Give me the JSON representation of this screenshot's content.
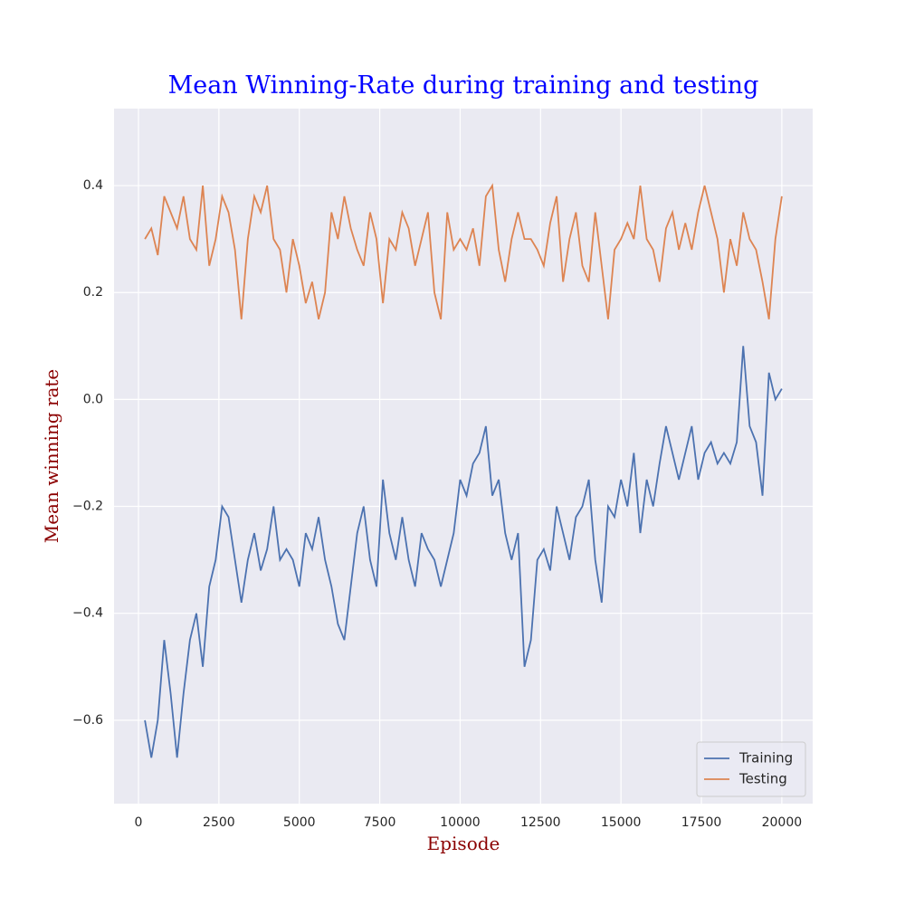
{
  "chart_data": {
    "type": "line",
    "title": "Mean Winning-Rate during training and testing",
    "x_label": "Episode",
    "y_label": "Mean winning rate",
    "x": [
      200,
      400,
      600,
      800,
      1000,
      1200,
      1400,
      1600,
      1800,
      2000,
      2200,
      2400,
      2600,
      2800,
      3000,
      3200,
      3400,
      3600,
      3800,
      4000,
      4200,
      4400,
      4600,
      4800,
      5000,
      5200,
      5400,
      5600,
      5800,
      6000,
      6200,
      6400,
      6600,
      6800,
      7000,
      7200,
      7400,
      7600,
      7800,
      8000,
      8200,
      8400,
      8600,
      8800,
      9000,
      9200,
      9400,
      9600,
      9800,
      10000,
      10200,
      10400,
      10600,
      10800,
      11000,
      11200,
      11400,
      11600,
      11800,
      12000,
      12200,
      12400,
      12600,
      12800,
      13000,
      13200,
      13400,
      13600,
      13800,
      14000,
      14200,
      14400,
      14600,
      14800,
      15000,
      15200,
      15400,
      15600,
      15800,
      16000,
      16200,
      16400,
      16600,
      16800,
      17000,
      17200,
      17400,
      17600,
      17800,
      18000,
      18200,
      18400,
      18600,
      18800,
      19000,
      19200,
      19400,
      19600,
      19800,
      20000
    ],
    "series": [
      {
        "name": "Training",
        "color": "#4c72b0",
        "values": [
          -0.6,
          -0.67,
          -0.6,
          -0.45,
          -0.55,
          -0.67,
          -0.55,
          -0.45,
          -0.4,
          -0.5,
          -0.35,
          -0.3,
          -0.2,
          -0.22,
          -0.3,
          -0.38,
          -0.3,
          -0.25,
          -0.32,
          -0.28,
          -0.2,
          -0.3,
          -0.28,
          -0.3,
          -0.35,
          -0.25,
          -0.28,
          -0.22,
          -0.3,
          -0.35,
          -0.42,
          -0.45,
          -0.35,
          -0.25,
          -0.2,
          -0.3,
          -0.35,
          -0.15,
          -0.25,
          -0.3,
          -0.22,
          -0.3,
          -0.35,
          -0.25,
          -0.28,
          -0.3,
          -0.35,
          -0.3,
          -0.25,
          -0.15,
          -0.18,
          -0.12,
          -0.1,
          -0.05,
          -0.18,
          -0.15,
          -0.25,
          -0.3,
          -0.25,
          -0.5,
          -0.45,
          -0.3,
          -0.28,
          -0.32,
          -0.2,
          -0.25,
          -0.3,
          -0.22,
          -0.2,
          -0.15,
          -0.3,
          -0.38,
          -0.2,
          -0.22,
          -0.15,
          -0.2,
          -0.1,
          -0.25,
          -0.15,
          -0.2,
          -0.12,
          -0.05,
          -0.1,
          -0.15,
          -0.1,
          -0.05,
          -0.15,
          -0.1,
          -0.08,
          -0.12,
          -0.1,
          -0.12,
          -0.08,
          0.1,
          -0.05,
          -0.08,
          -0.18,
          0.05,
          0.0,
          0.02
        ]
      },
      {
        "name": "Testing",
        "color": "#dd8452",
        "values": [
          0.3,
          0.32,
          0.27,
          0.38,
          0.35,
          0.32,
          0.38,
          0.3,
          0.28,
          0.4,
          0.25,
          0.3,
          0.38,
          0.35,
          0.28,
          0.15,
          0.3,
          0.38,
          0.35,
          0.4,
          0.3,
          0.28,
          0.2,
          0.3,
          0.25,
          0.18,
          0.22,
          0.15,
          0.2,
          0.35,
          0.3,
          0.38,
          0.32,
          0.28,
          0.25,
          0.35,
          0.3,
          0.18,
          0.3,
          0.28,
          0.35,
          0.32,
          0.25,
          0.3,
          0.35,
          0.2,
          0.15,
          0.35,
          0.28,
          0.3,
          0.28,
          0.32,
          0.25,
          0.38,
          0.4,
          0.28,
          0.22,
          0.3,
          0.35,
          0.3,
          0.3,
          0.28,
          0.25,
          0.33,
          0.38,
          0.22,
          0.3,
          0.35,
          0.25,
          0.22,
          0.35,
          0.25,
          0.15,
          0.28,
          0.3,
          0.33,
          0.3,
          0.4,
          0.3,
          0.28,
          0.22,
          0.32,
          0.35,
          0.28,
          0.33,
          0.28,
          0.35,
          0.4,
          0.35,
          0.3,
          0.2,
          0.3,
          0.25,
          0.35,
          0.3,
          0.28,
          0.22,
          0.15,
          0.3,
          0.38
        ]
      }
    ],
    "xlim": [
      -760,
      20960
    ],
    "ylim": [
      -0.756,
      0.544
    ],
    "xticks": [
      0,
      2500,
      5000,
      7500,
      10000,
      12500,
      15000,
      17500,
      20000
    ],
    "yticks": [
      {
        "value": -0.6,
        "label": "−0.6"
      },
      {
        "value": -0.4,
        "label": "−0.4"
      },
      {
        "value": -0.2,
        "label": "−0.2"
      },
      {
        "value": 0.0,
        "label": "0.0"
      },
      {
        "value": 0.2,
        "label": "0.2"
      },
      {
        "value": 0.4,
        "label": "0.4"
      }
    ],
    "grid": true,
    "legend": "lower right"
  }
}
